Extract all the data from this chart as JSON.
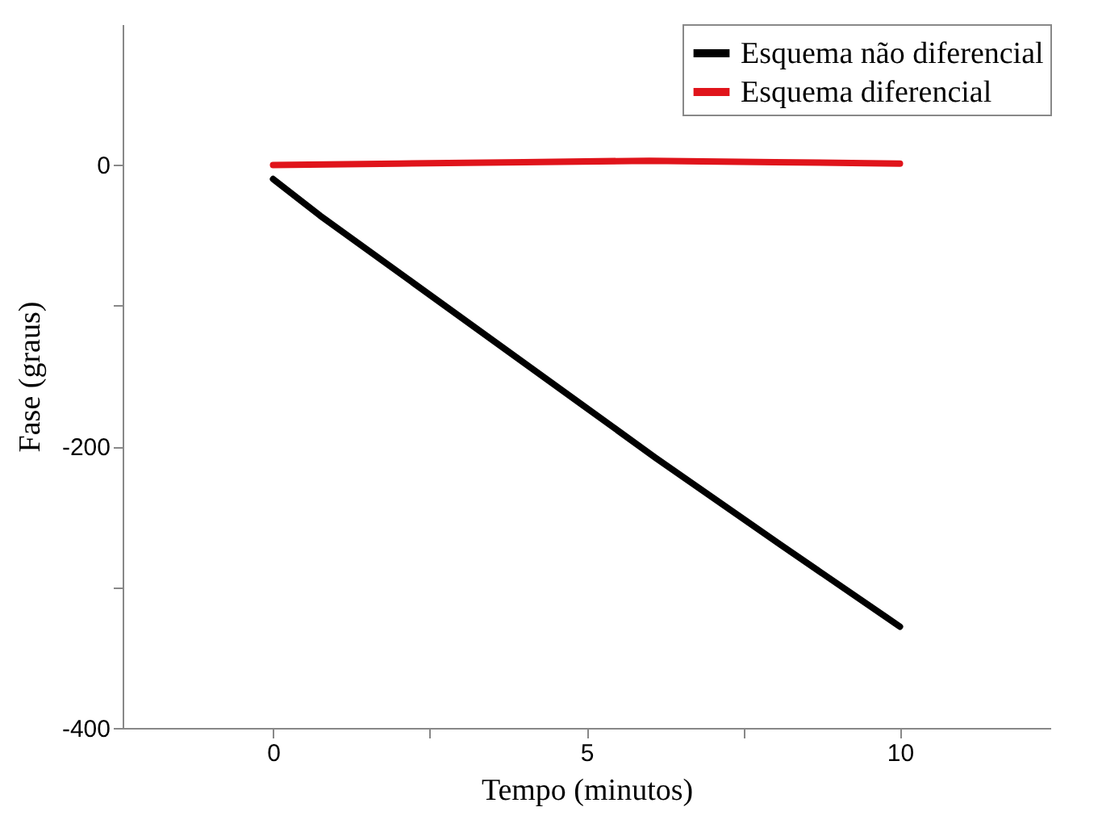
{
  "chart_data": {
    "type": "line",
    "xlabel": "Tempo (minutos)",
    "ylabel": "Fase (graus)",
    "xlim": [
      -2.4,
      12.4
    ],
    "xticks": [
      0,
      {
        "value": 2.5,
        "label": null
      },
      5,
      {
        "value": 7.5,
        "label": null
      },
      10
    ],
    "ylim": [
      -400,
      100
    ],
    "yticks": [
      -400,
      {
        "value": -300,
        "label": null
      },
      -200,
      {
        "value": -100,
        "label": null
      },
      0
    ],
    "legend": "top right",
    "grid": false,
    "marker": "none",
    "line_style": "solid",
    "series": [
      {
        "name": "Esquema não diferencial",
        "color": "#000000",
        "x": [
          0,
          0.75,
          6.1,
          8.1,
          10
        ],
        "values": [
          -10,
          -36,
          -208,
          -270,
          -328
        ]
      },
      {
        "name": "Esquema diferencial",
        "color": "#e0141b",
        "x": [
          0,
          2,
          4,
          6,
          8,
          10
        ],
        "values": [
          0,
          1,
          2,
          3,
          2,
          1
        ]
      }
    ]
  }
}
